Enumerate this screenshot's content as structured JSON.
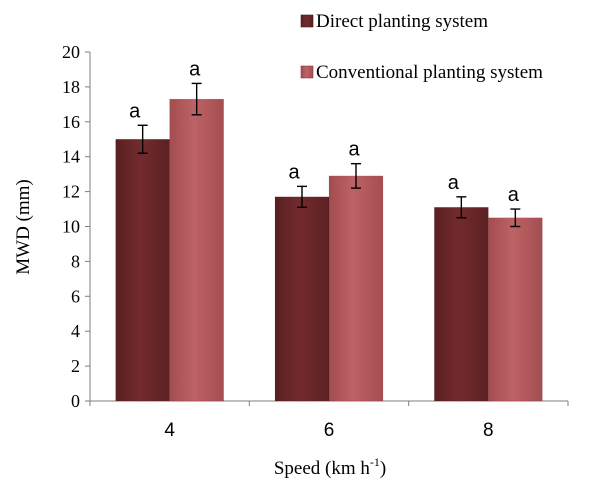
{
  "chart_data": {
    "type": "bar",
    "categories": [
      "4",
      "6",
      "8"
    ],
    "series": [
      {
        "name": "Direct planting system",
        "color": "#6e2a2c",
        "values": [
          15.0,
          11.7,
          11.1
        ],
        "errors": [
          0.8,
          0.6,
          0.6
        ],
        "letters": [
          "a",
          "a",
          "a"
        ]
      },
      {
        "name": "Conventional planting system",
        "color": "#b75a5c",
        "values": [
          17.3,
          12.9,
          10.5
        ],
        "errors": [
          0.9,
          0.7,
          0.5
        ],
        "letters": [
          "a",
          "a",
          "a"
        ]
      }
    ],
    "ylim": [
      0,
      20
    ],
    "yticks": [
      "0",
      "2",
      "4",
      "6",
      "8",
      "10",
      "12",
      "14",
      "16",
      "18",
      "20"
    ],
    "ylabel": "MWD (mm)",
    "xlabel_main": "Speed (km h",
    "xlabel_sup": "-1",
    "xlabel_close": ")",
    "title": "",
    "grid": false,
    "legend_position": "top-right"
  }
}
